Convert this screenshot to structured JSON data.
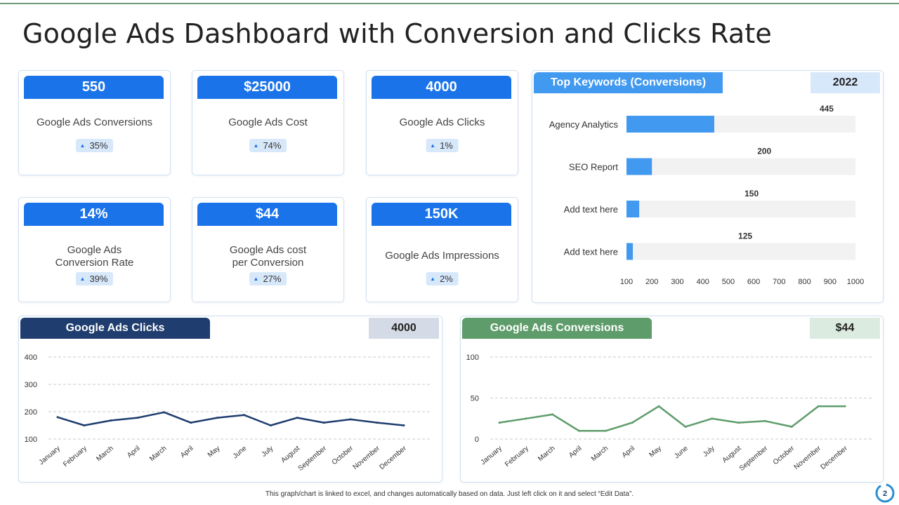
{
  "title": "Google Ads Dashboard with Conversion and Clicks Rate",
  "kpis": [
    {
      "value": "550",
      "label": "Google Ads Conversions",
      "change": "35%"
    },
    {
      "value": "$25000",
      "label": "Google Ads Cost",
      "change": "74%"
    },
    {
      "value": "4000",
      "label": "Google Ads Clicks",
      "change": "1%"
    },
    {
      "value": "14%",
      "label_line1": "Google Ads",
      "label_line2": "Conversion Rate",
      "change": "39%"
    },
    {
      "value": "$44",
      "label_line1": "Google Ads cost",
      "label_line2": "per Conversion",
      "change": "27%"
    },
    {
      "value": "150K",
      "label": "Google Ads Impressions",
      "change": "2%"
    }
  ],
  "colors": {
    "accent_blue": "#1a73e8",
    "bar_blue": "#4299f0",
    "navy": "#1f3d6e",
    "green": "#5e9c6b",
    "badge_blue": "#d8e8fb"
  },
  "keywords_panel": {
    "title": "Top Keywords (Conversions)",
    "badge": "2022"
  },
  "clicks_panel": {
    "title": "Google Ads Clicks",
    "badge": "4000"
  },
  "conversions_panel": {
    "title": "Google Ads Conversions",
    "badge": "$44"
  },
  "chart_data": [
    {
      "type": "bar",
      "orientation": "horizontal",
      "title": "Top Keywords (Conversions)",
      "categories": [
        "Agency Analytics",
        "SEO Report",
        "Add text here",
        "Add text here"
      ],
      "values": [
        445,
        200,
        150,
        125
      ],
      "xlim": [
        100,
        1000
      ],
      "xticks": [
        100,
        200,
        300,
        400,
        500,
        600,
        700,
        800,
        900,
        1000
      ]
    },
    {
      "type": "line",
      "title": "Google Ads Clicks",
      "categories": [
        "January",
        "February",
        "March",
        "April",
        "March",
        "April",
        "May",
        "June",
        "July",
        "August",
        "September",
        "October",
        "November",
        "December"
      ],
      "values": [
        180,
        150,
        168,
        178,
        198,
        160,
        178,
        188,
        150,
        178,
        160,
        172,
        160,
        150
      ],
      "ylim": [
        100,
        400
      ],
      "yticks": [
        100,
        200,
        300,
        400
      ],
      "grid": true
    },
    {
      "type": "line",
      "title": "Google Ads Conversions",
      "categories": [
        "January",
        "February",
        "March",
        "April",
        "March",
        "April",
        "May",
        "June",
        "July",
        "August",
        "September",
        "October",
        "November",
        "December"
      ],
      "values": [
        20,
        25,
        30,
        10,
        10,
        20,
        40,
        15,
        25,
        20,
        22,
        15,
        40,
        40
      ],
      "ylim": [
        0,
        100
      ],
      "yticks": [
        0,
        50,
        100
      ],
      "grid": true
    }
  ],
  "footnote": "This graph/chart is linked to excel, and changes automatically based on data. Just left click on it and select “Edit Data”.",
  "page_number": "2"
}
